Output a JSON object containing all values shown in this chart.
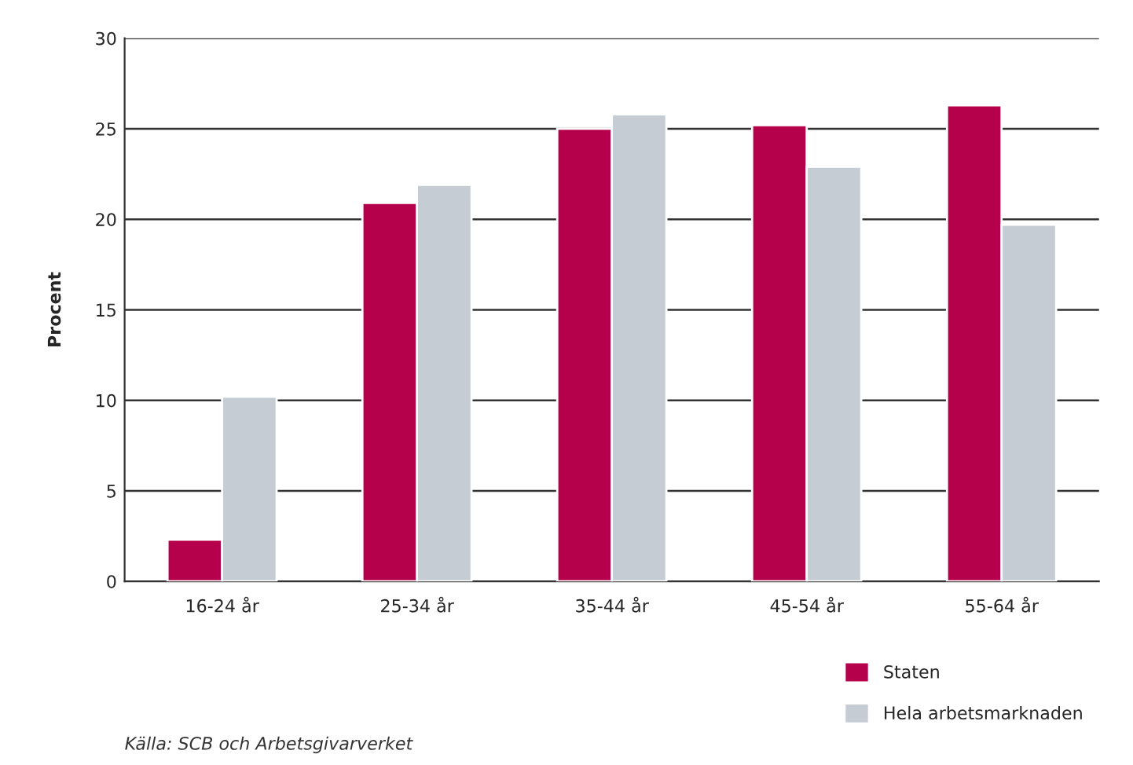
{
  "chart_data": {
    "type": "bar",
    "ylabel": "Procent",
    "categories": [
      "16-24 år",
      "25-34 år",
      "35-44 år",
      "45-54 år",
      "55-64 år"
    ],
    "series": [
      {
        "name": "Staten",
        "color": "#b5004b",
        "values": [
          2.3,
          20.9,
          25.0,
          25.2,
          26.3
        ]
      },
      {
        "name": "Hela arbetsmarknaden",
        "color": "#c5ccd4",
        "values": [
          10.2,
          21.9,
          25.8,
          22.9,
          19.7
        ]
      }
    ],
    "ylim": [
      0,
      30
    ],
    "yticks": [
      0,
      5,
      10,
      15,
      20,
      25,
      30
    ],
    "grid": "y",
    "legend": "bottom right",
    "annotations": [
      "Källa: SCB och Arbetsgivarverket"
    ]
  }
}
